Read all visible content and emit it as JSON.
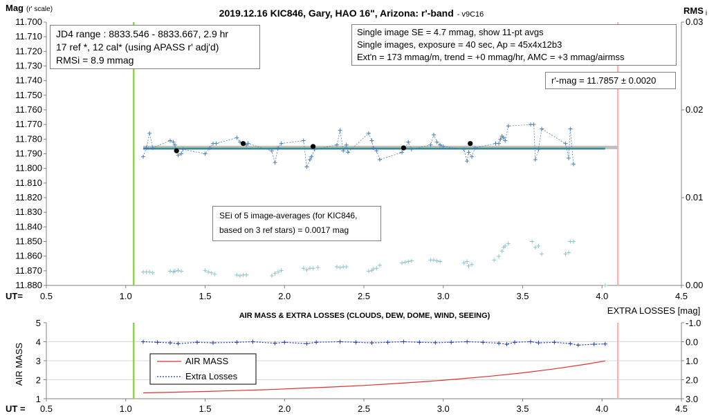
{
  "chart_data": [
    {
      "type": "scatter",
      "title": "2019.12.16 KIC846, Gary, HAO 16\", Arizona: r'-band",
      "title_suffix": "- v9C16",
      "ylabel_main": "Mag",
      "ylabel_sub": "(r' scale)",
      "y2label_main": "RMS",
      "y2label_sub": "i",
      "xlabel": "UT=",
      "xlim": [
        0.5,
        4.5
      ],
      "ylim": [
        11.88,
        11.7
      ],
      "y2lim": [
        0.0,
        0.03
      ],
      "x_ticks": [
        "0.5",
        "1.0",
        "1.5",
        "2.0",
        "2.5",
        "3.0",
        "3.5",
        "4.0",
        "4.5"
      ],
      "y_ticks": [
        "11.700",
        "11.710",
        "11.720",
        "11.730",
        "11.740",
        "11.750",
        "11.760",
        "11.770",
        "11.780",
        "11.790",
        "11.800",
        "11.810",
        "11.820",
        "11.830",
        "11.840",
        "11.850",
        "11.860",
        "11.870",
        "11.880"
      ],
      "y2_ticks": [
        "0.03",
        "0.02",
        "0.01",
        "0.00"
      ],
      "vertical_lines": [
        {
          "x": 1.05,
          "color": "#92d050"
        },
        {
          "x": 4.1,
          "color": "#f4b8b8"
        }
      ],
      "series": [
        {
          "role": "single-images",
          "style": "plus-dashed",
          "color": "#4a7fb5",
          "points": [
            [
              1.11,
              11.792
            ],
            [
              1.13,
              11.786
            ],
            [
              1.15,
              11.776
            ],
            [
              1.17,
              11.786
            ],
            [
              1.28,
              11.781
            ],
            [
              1.3,
              11.782
            ],
            [
              1.31,
              11.784
            ],
            [
              1.32,
              11.788
            ],
            [
              1.33,
              11.791
            ],
            [
              1.35,
              11.79
            ],
            [
              1.36,
              11.787
            ],
            [
              1.5,
              11.79
            ],
            [
              1.53,
              11.786
            ],
            [
              1.55,
              11.783
            ],
            [
              1.57,
              11.783
            ],
            [
              1.7,
              11.779
            ],
            [
              1.72,
              11.782
            ],
            [
              1.74,
              11.783
            ],
            [
              1.76,
              11.784
            ],
            [
              1.77,
              11.783
            ],
            [
              1.92,
              11.788
            ],
            [
              1.94,
              11.796
            ],
            [
              1.96,
              11.786
            ],
            [
              1.98,
              11.783
            ],
            [
              2.12,
              11.781
            ],
            [
              2.14,
              11.799
            ],
            [
              2.16,
              11.794
            ],
            [
              2.17,
              11.792
            ],
            [
              2.19,
              11.787
            ],
            [
              2.33,
              11.784
            ],
            [
              2.35,
              11.774
            ],
            [
              2.37,
              11.788
            ],
            [
              2.39,
              11.784
            ],
            [
              2.4,
              11.789
            ],
            [
              2.53,
              11.776
            ],
            [
              2.55,
              11.781
            ],
            [
              2.56,
              11.786
            ],
            [
              2.58,
              11.788
            ],
            [
              2.6,
              11.794
            ],
            [
              2.74,
              11.789
            ],
            [
              2.76,
              11.786
            ],
            [
              2.78,
              11.782
            ],
            [
              2.8,
              11.787
            ],
            [
              2.92,
              11.784
            ],
            [
              2.94,
              11.777
            ],
            [
              2.96,
              11.782
            ],
            [
              2.98,
              11.784
            ],
            [
              3.0,
              11.785
            ],
            [
              3.13,
              11.787
            ],
            [
              3.15,
              11.795
            ],
            [
              3.16,
              11.789
            ],
            [
              3.18,
              11.792
            ],
            [
              3.2,
              11.786
            ],
            [
              3.33,
              11.783
            ],
            [
              3.35,
              11.783
            ],
            [
              3.36,
              11.78
            ],
            [
              3.37,
              11.778
            ],
            [
              3.38,
              11.779
            ],
            [
              3.39,
              11.781
            ],
            [
              3.41,
              11.771
            ],
            [
              3.55,
              11.77
            ],
            [
              3.57,
              11.77
            ],
            [
              3.58,
              11.794
            ],
            [
              3.6,
              11.787
            ],
            [
              3.62,
              11.773
            ],
            [
              3.77,
              11.783
            ],
            [
              3.79,
              11.793
            ],
            [
              3.8,
              11.773
            ],
            [
              3.82,
              11.797
            ]
          ]
        },
        {
          "role": "5-image averages",
          "style": "dot",
          "color": "#000000",
          "points": [
            [
              1.32,
              11.788
            ],
            [
              1.74,
              11.783
            ],
            [
              2.18,
              11.785
            ],
            [
              2.75,
              11.786
            ],
            [
              3.17,
              11.783
            ]
          ]
        },
        {
          "role": "RMSi per image",
          "style": "plus",
          "color": "#8cc4cc",
          "axis": "y2",
          "points": [
            [
              1.11,
              0.00153
            ],
            [
              1.13,
              0.00153
            ],
            [
              1.15,
              0.00153
            ],
            [
              1.17,
              0.00144
            ],
            [
              1.28,
              0.00161
            ],
            [
              1.3,
              0.00153
            ],
            [
              1.31,
              0.00161
            ],
            [
              1.33,
              0.0017
            ],
            [
              1.35,
              0.00161
            ],
            [
              1.5,
              0.0017
            ],
            [
              1.52,
              0.00153
            ],
            [
              1.54,
              0.00144
            ],
            [
              1.56,
              0.00128
            ],
            [
              1.7,
              0.00119
            ],
            [
              1.72,
              0.0011
            ],
            [
              1.74,
              0.00119
            ],
            [
              1.76,
              0.00119
            ],
            [
              1.92,
              0.0011
            ],
            [
              1.94,
              0.00136
            ],
            [
              1.96,
              0.00153
            ],
            [
              1.98,
              0.0017
            ],
            [
              2.12,
              0.00195
            ],
            [
              2.14,
              0.00178
            ],
            [
              2.16,
              0.00195
            ],
            [
              2.18,
              0.00195
            ],
            [
              2.21,
              0.00204
            ],
            [
              2.33,
              0.00212
            ],
            [
              2.35,
              0.00204
            ],
            [
              2.37,
              0.00212
            ],
            [
              2.39,
              0.00212
            ],
            [
              2.53,
              0.00161
            ],
            [
              2.55,
              0.0017
            ],
            [
              2.56,
              0.00187
            ],
            [
              2.58,
              0.00195
            ],
            [
              2.6,
              0.00229
            ],
            [
              2.74,
              0.00255
            ],
            [
              2.76,
              0.00263
            ],
            [
              2.78,
              0.00272
            ],
            [
              2.8,
              0.0028
            ],
            [
              2.92,
              0.00289
            ],
            [
              2.94,
              0.00289
            ],
            [
              2.96,
              0.0028
            ],
            [
              2.98,
              0.00272
            ],
            [
              3.13,
              0.00255
            ],
            [
              3.15,
              0.00272
            ],
            [
              3.16,
              0.00221
            ],
            [
              3.18,
              0.00238
            ],
            [
              3.32,
              0.00289
            ],
            [
              3.35,
              0.00331
            ],
            [
              3.37,
              0.00391
            ],
            [
              3.38,
              0.00433
            ],
            [
              3.39,
              0.0045
            ],
            [
              3.41,
              0.00475
            ],
            [
              3.56,
              0.005
            ],
            [
              3.58,
              0.00433
            ],
            [
              3.6,
              0.0045
            ],
            [
              3.62,
              0.00357
            ],
            [
              3.77,
              0.00357
            ],
            [
              3.79,
              0.00374
            ],
            [
              3.8,
              0.005
            ],
            [
              3.82,
              0.005
            ],
            [
              4.02,
              0.0
            ]
          ]
        }
      ],
      "fit_lines": [
        {
          "role": "thick gray band",
          "color": "#bfbfbf",
          "x": [
            1.11,
            4.1
          ],
          "y": [
            11.7857,
            11.7857
          ]
        },
        {
          "role": "green fit",
          "color": "#5ab25a",
          "x": [
            1.11,
            4.02
          ],
          "y": [
            11.7862,
            11.7862
          ]
        },
        {
          "role": "blue fit",
          "color": "#2e75b6",
          "x": [
            1.11,
            4.02
          ],
          "y": [
            11.7867,
            11.7867
          ]
        }
      ],
      "annotations": {
        "left_box": [
          "JD4 range : 8833.546 - 8833.667,  2.9  hr",
          "17 ref *, 12 cal* (using APASS r' adj'd)",
          "RMSi = 8.9 mmag"
        ],
        "right_box": [
          "Single image SE = 4.7 mmag, show  11-pt avgs",
          "Single images, exposure = 40 sec, Ap = 45x4x12b3",
          "Ext'n = 173 mmag/m, trend =  +0 mmag/hr, AMC = +3 mmag/airmss"
        ],
        "mag_box": "r'-mag = 11.7857 ± 0.0020",
        "sei_box": [
          "SEi of 5 image-averages (for KIC846,",
          "based on 3 ref stars) = 0.0017 mag"
        ]
      }
    },
    {
      "type": "line",
      "title": "AIR MASS & EXTRA LOSSES (CLOUDS, DEW, DOME, WIND, SEEING)",
      "ylabel": "AIR MASS",
      "y2label": "EXTRA LOSSES [mag]",
      "xlabel": "UT =",
      "xlim": [
        0.5,
        4.5
      ],
      "ylim": [
        1,
        5
      ],
      "y2lim": [
        3.0,
        -1.0
      ],
      "x_ticks": [
        "0.5",
        "1.0",
        "1.5",
        "2.0",
        "2.5",
        "3.0",
        "3.5",
        "4.0",
        "4.5"
      ],
      "y_ticks": [
        "5",
        "4",
        "3",
        "2",
        "1"
      ],
      "y2_ticks": [
        "-1.0",
        "0.0",
        "1.0",
        "2.0",
        "3.0"
      ],
      "vertical_lines": [
        {
          "x": 1.05,
          "color": "#92d050"
        },
        {
          "x": 4.1,
          "color": "#f4b8b8"
        }
      ],
      "legend": {
        "placement": "left-center",
        "entries": [
          "AIR MASS",
          "Extra Losses"
        ]
      },
      "series": [
        {
          "name": "AIR MASS",
          "color": "#e03030",
          "style": "solid",
          "x": [
            1.11,
            1.3,
            1.5,
            1.7,
            1.9,
            2.1,
            2.3,
            2.5,
            2.7,
            2.9,
            3.1,
            3.3,
            3.5,
            3.7,
            3.9,
            4.02
          ],
          "y": [
            1.31,
            1.34,
            1.38,
            1.43,
            1.48,
            1.55,
            1.62,
            1.7,
            1.8,
            1.91,
            2.04,
            2.19,
            2.36,
            2.57,
            2.82,
            2.99
          ]
        },
        {
          "name": "Extra Losses",
          "color": "#1f3fa5",
          "style": "dashed",
          "axis": "y2",
          "x": [
            1.11,
            1.2,
            1.28,
            1.33,
            1.45,
            1.55,
            1.7,
            1.8,
            1.94,
            2.0,
            2.14,
            2.2,
            2.35,
            2.45,
            2.55,
            2.65,
            2.75,
            2.85,
            2.95,
            3.05,
            3.15,
            3.25,
            3.35,
            3.4,
            3.45,
            3.55,
            3.6,
            3.7,
            3.8,
            3.85,
            3.95,
            4.02
          ],
          "y": [
            0.0,
            0.03,
            0.06,
            0.1,
            0.03,
            0.06,
            0.03,
            0.0,
            0.08,
            0.03,
            0.1,
            0.03,
            0.0,
            0.03,
            0.06,
            0.03,
            0.0,
            0.03,
            0.05,
            0.03,
            0.0,
            0.03,
            0.08,
            0.13,
            0.03,
            0.0,
            0.06,
            0.03,
            0.1,
            0.18,
            0.13,
            0.12
          ]
        }
      ]
    }
  ]
}
